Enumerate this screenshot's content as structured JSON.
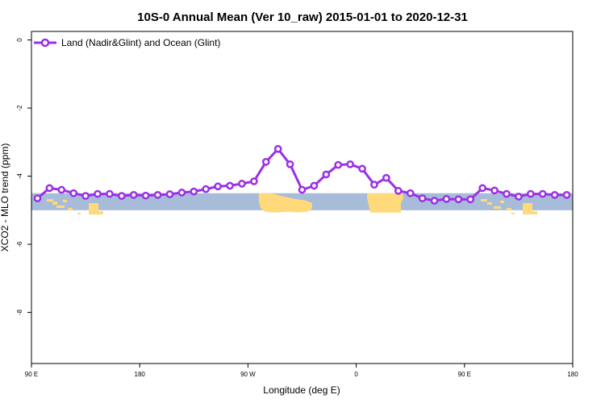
{
  "chart_data": {
    "type": "line",
    "title": "10S-0 Annual Mean (Ver 10_raw)   2015-01-01 to 2020-12-31",
    "xlabel": "Longitude (deg E)",
    "ylabel": "XCO2 - MLO trend (ppm)",
    "x_ticks": [
      {
        "value": 90,
        "label": "90 E"
      },
      {
        "value": 180,
        "label": "180"
      },
      {
        "value": 270,
        "label": "90 W"
      },
      {
        "value": 360,
        "label": "0"
      },
      {
        "value": 450,
        "label": "90 E"
      },
      {
        "value": 540,
        "label": "180"
      }
    ],
    "y_ticks": [
      {
        "value": 0,
        "label": "0"
      },
      {
        "value": -2,
        "label": "-2"
      },
      {
        "value": -4,
        "label": "-4"
      },
      {
        "value": -6,
        "label": "-6"
      },
      {
        "value": -8,
        "label": "-8"
      }
    ],
    "xlim": [
      90,
      540
    ],
    "ylim": [
      -9.5,
      0.25
    ],
    "legend_position": "top-left",
    "band": {
      "y_range": [
        -4.5,
        -5.0
      ],
      "ocean_color": "#a7bcd9",
      "land_color": "#ffd97a"
    },
    "series": [
      {
        "name": "Land (Nadir&Glint) and Ocean (Glint)",
        "color": "#9b30e6",
        "x": [
          95,
          105,
          115,
          125,
          135,
          145,
          155,
          165,
          175,
          185,
          195,
          205,
          215,
          225,
          235,
          245,
          255,
          265,
          275,
          285,
          295,
          305,
          315,
          325,
          335,
          345,
          355,
          365,
          375,
          385,
          395,
          405,
          415,
          425,
          435,
          445,
          455,
          465,
          475,
          485,
          495,
          505,
          515,
          525,
          535
        ],
        "y": [
          -4.65,
          -4.35,
          -4.4,
          -4.5,
          -4.58,
          -4.52,
          -4.52,
          -4.58,
          -4.55,
          -4.57,
          -4.55,
          -4.53,
          -4.48,
          -4.45,
          -4.38,
          -4.3,
          -4.28,
          -4.22,
          -4.15,
          -3.58,
          -3.2,
          -3.65,
          -4.4,
          -4.28,
          -3.95,
          -3.67,
          -3.65,
          -3.78,
          -4.25,
          -4.05,
          -4.43,
          -4.5,
          -4.65,
          -4.72,
          -4.67,
          -4.68,
          -4.68,
          -4.35,
          -4.42,
          -4.52,
          -4.6,
          -4.52,
          -4.52,
          -4.55,
          -4.55
        ]
      }
    ]
  }
}
